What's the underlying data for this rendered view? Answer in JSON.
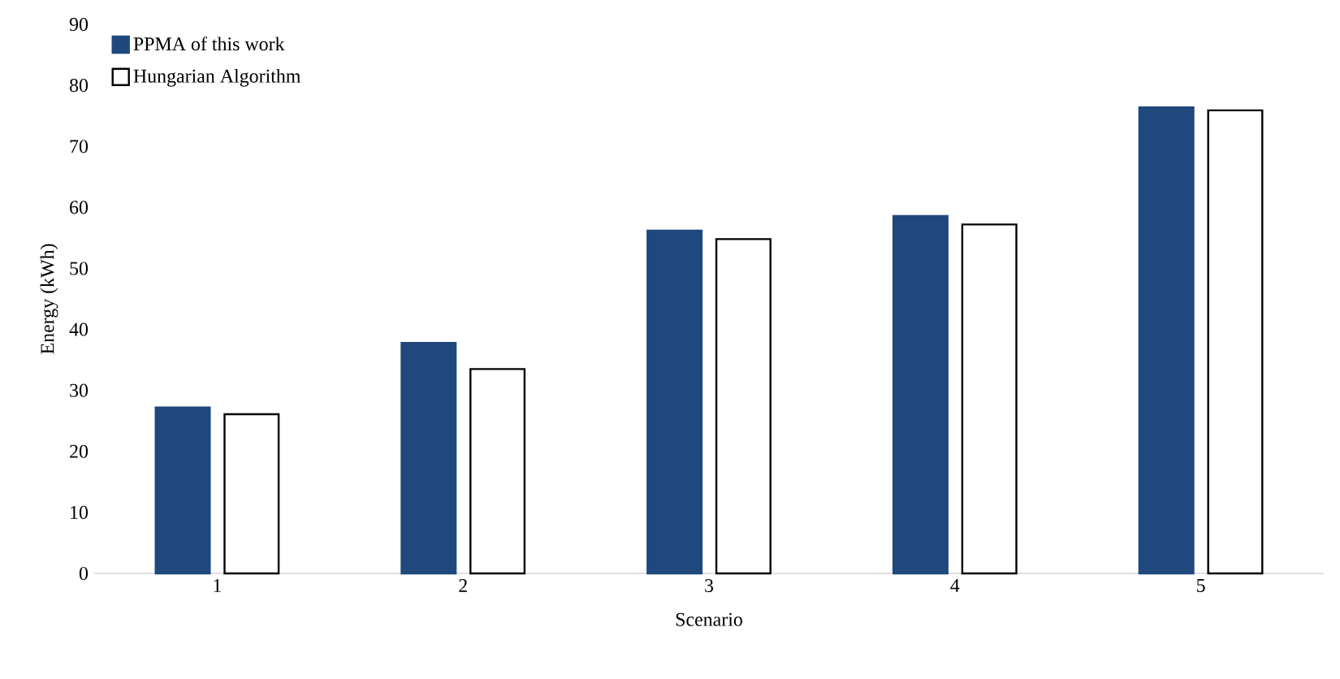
{
  "chart_data": {
    "type": "bar",
    "xlabel": "Scenario",
    "ylabel": "Energy (kWh)",
    "categories": [
      "1",
      "2",
      "3",
      "4",
      "5"
    ],
    "series": [
      {
        "name": "PPMA of this work",
        "color": "#1f497d",
        "values": [
          27.2,
          37.8,
          56.2,
          58.6,
          76.4
        ]
      },
      {
        "name": "Hungarian Algorithm",
        "color": "#ffffff",
        "values": [
          26.1,
          33.5,
          54.8,
          57.2,
          75.9
        ]
      }
    ],
    "ylim": [
      0,
      90
    ],
    "yticks": [
      0,
      10,
      20,
      30,
      40,
      50,
      60,
      70,
      80,
      90
    ],
    "legend": "top left",
    "grid": false
  }
}
